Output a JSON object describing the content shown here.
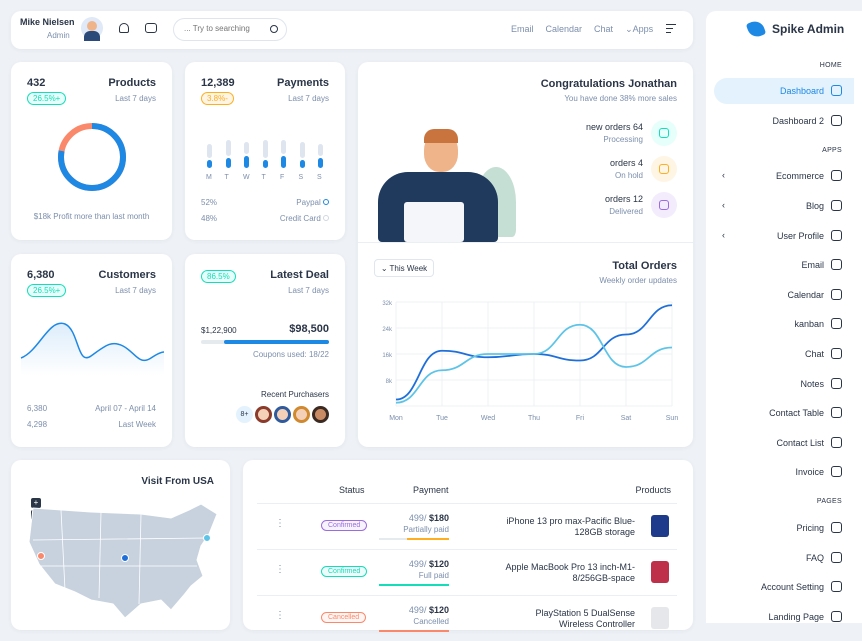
{
  "header": {
    "user_name": "Mike Nielsen",
    "user_role": "Admin",
    "search_placeholder": "... Try to searching",
    "links": [
      "Email",
      "Calendar",
      "Chat",
      "Apps"
    ]
  },
  "brand": {
    "name": "Spike Admin"
  },
  "sidebar": {
    "sections": [
      "HOME",
      "APPS",
      "PAGES"
    ],
    "items": [
      {
        "label": "Dashboard",
        "active": true
      },
      {
        "label": "Dashboard 2"
      },
      {
        "label": "Ecommerce",
        "chevron": true
      },
      {
        "label": "Blog",
        "chevron": true
      },
      {
        "label": "User Profile",
        "chevron": true
      },
      {
        "label": "Email"
      },
      {
        "label": "Calendar"
      },
      {
        "label": "kanban"
      },
      {
        "label": "Chat"
      },
      {
        "label": "Notes"
      },
      {
        "label": "Contact Table"
      },
      {
        "label": "Contact List"
      },
      {
        "label": "Invoice"
      },
      {
        "label": "Pricing"
      },
      {
        "label": "FAQ"
      },
      {
        "label": "Account Setting"
      },
      {
        "label": "Landing Page"
      }
    ]
  },
  "products": {
    "value": "432",
    "title": "Products",
    "badge": "26.5%+",
    "period": "Last 7 days",
    "footer": "$18k Profit more than last month",
    "donut_pct": 78
  },
  "payments": {
    "value": "12,389",
    "title": "Payments",
    "badge": "3.8%-",
    "period": "Last 7 days",
    "days": [
      "M",
      "T",
      "W",
      "T",
      "F",
      "S",
      "S"
    ],
    "bars": [
      [
        0.35,
        0.2
      ],
      [
        0.4,
        0.25
      ],
      [
        0.3,
        0.3
      ],
      [
        0.45,
        0.2
      ],
      [
        0.35,
        0.3
      ],
      [
        0.4,
        0.2
      ],
      [
        0.3,
        0.25
      ]
    ],
    "rows": [
      {
        "pct": "52%",
        "label": "Paypal"
      },
      {
        "pct": "48%",
        "label": "Credit Card"
      }
    ]
  },
  "congrats": {
    "title": "Congratulations Jonathan",
    "subtitle": "You have done 38% more sales",
    "orders": [
      {
        "label": "new orders 64",
        "status": "Processing",
        "color": "#e6fffa",
        "icon": "#13deb9"
      },
      {
        "label": "orders 4",
        "status": "On hold",
        "color": "#fef5e5",
        "icon": "#ffae1f"
      },
      {
        "label": "orders 12",
        "status": "Delivered",
        "color": "#f2ecfd",
        "icon": "#9b6be0"
      }
    ]
  },
  "customers": {
    "value": "6,380",
    "title": "Customers",
    "badge": "26.5%+",
    "period": "Last 7 days",
    "row1": {
      "v": "6,380",
      "t": "April 07 - April 14"
    },
    "row2": {
      "v": "4,298",
      "t": "Last Week"
    }
  },
  "deal": {
    "badge": "86.5%",
    "title": "Latest Deal",
    "period": "Last 7 days",
    "left": "$1,22,900",
    "right": "$98,500",
    "progress": 0.82,
    "coupons": "Coupons used: 18/22",
    "recent": "Recent Purchasers",
    "more": "8+"
  },
  "orders_chart": {
    "filter": "This Week",
    "title": "Total Orders",
    "subtitle": "Weekly order updates"
  },
  "chart_data": {
    "type": "line",
    "categories": [
      "Mon",
      "Tue",
      "Wed",
      "Thu",
      "Fri",
      "Sat",
      "Sun"
    ],
    "y_ticks": [
      "32k",
      "24k",
      "16k",
      "8k"
    ],
    "ylim": [
      0,
      32
    ],
    "series": [
      {
        "color": "#1e6fd9",
        "values": [
          2,
          17,
          15,
          16,
          14,
          22,
          31
        ]
      },
      {
        "color": "#5dc4e8",
        "values": [
          1,
          11,
          16,
          16,
          25,
          12,
          18
        ]
      }
    ]
  },
  "map": {
    "title": "Visit From USA",
    "zoom_in": "+",
    "zoom_out": "–"
  },
  "table": {
    "headers": [
      "Status",
      "Payment",
      "Products"
    ],
    "rows": [
      {
        "status": "Confirmed",
        "scolor": "#9b6be0",
        "pay": "499/",
        "amt": "$180",
        "note": "Partially paid",
        "bar": "#ffae1f",
        "product": "iPhone 13 pro max-Pacific Blue-128GB storage",
        "thumb": "#1e3a8a"
      },
      {
        "status": "Confirmed",
        "scolor": "#13deb9",
        "pay": "499/",
        "amt": "$120",
        "note": "Full paid",
        "bar": "#13deb9",
        "product": "Apple MacBook Pro 13 inch-M1-8/256GB-space",
        "thumb": "#be2f4a"
      },
      {
        "status": "Cancelled",
        "scolor": "#fa896b",
        "pay": "499/",
        "amt": "$120",
        "note": "Cancelled",
        "bar": "#fa896b",
        "product": "PlayStation 5 DualSense Wireless Controller",
        "thumb": "#e5e7eb"
      }
    ]
  }
}
